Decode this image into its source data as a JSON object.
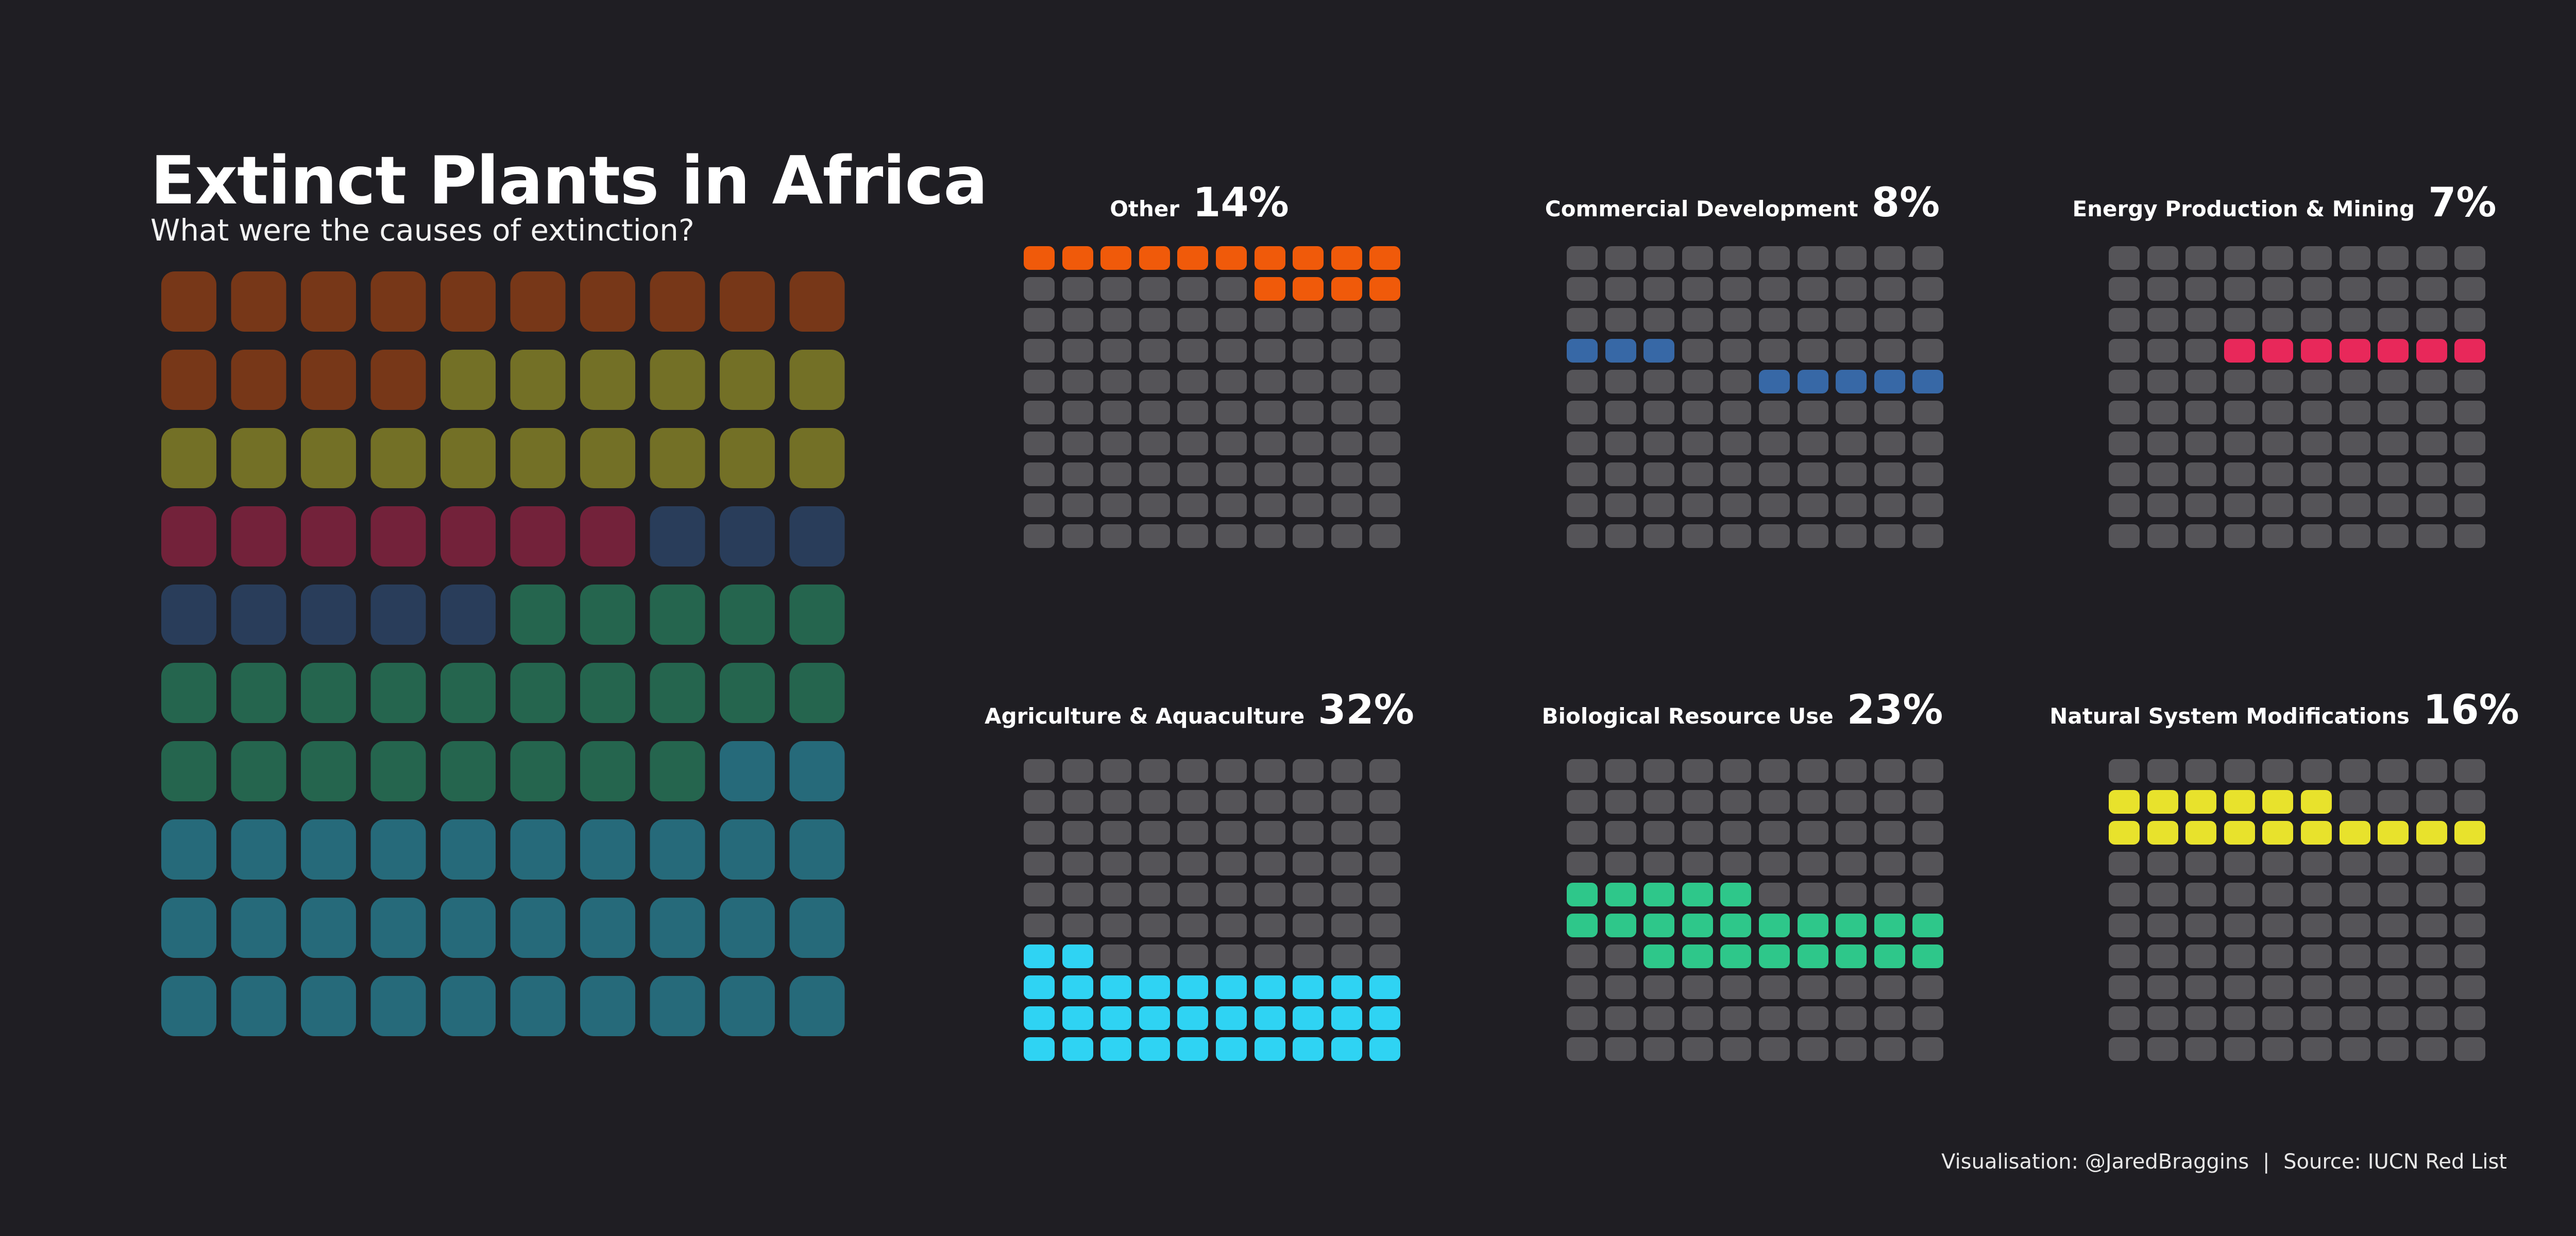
{
  "title": "Extinct Plants in Africa",
  "subtitle": "What were the causes of extinction?",
  "footer": {
    "credit": "Visualisation: @JaredBraggins",
    "separator": "|",
    "source": "Source: IUCN Red List"
  },
  "colors": {
    "background": "#1f1e23",
    "empty_cell": "#555458",
    "Other": "#f05a0a",
    "Commercial Development": "#3768a6",
    "Energy Production & Mining": "#e8285a",
    "Agriculture & Aquaculture": "#2fd3f3",
    "Biological Resource Use": "#2ec78a",
    "Natural System Modifications": "#e8e22c"
  },
  "chart_data": {
    "type": "waffle",
    "grid": [
      10,
      10
    ],
    "unit": "%",
    "categories": [
      {
        "name": "Other",
        "value": 14
      },
      {
        "name": "Commercial Development",
        "value": 8
      },
      {
        "name": "Energy Production & Mining",
        "value": 7
      },
      {
        "name": "Agriculture & Aquaculture",
        "value": 32
      },
      {
        "name": "Biological Resource Use",
        "value": 23
      },
      {
        "name": "Natural System Modifications",
        "value": 16
      }
    ],
    "overview_order": [
      "Other",
      "Natural System Modifications",
      "Energy Production & Mining",
      "Commercial Development",
      "Biological Resource Use",
      "Agriculture & Aquaculture"
    ],
    "panels": [
      {
        "label": "Other",
        "pct": "14%",
        "filled": [
          [
            0,
            0
          ],
          [
            0,
            1
          ],
          [
            0,
            2
          ],
          [
            0,
            3
          ],
          [
            0,
            4
          ],
          [
            0,
            5
          ],
          [
            0,
            6
          ],
          [
            0,
            7
          ],
          [
            0,
            8
          ],
          [
            0,
            9
          ],
          [
            1,
            6
          ],
          [
            1,
            7
          ],
          [
            1,
            8
          ],
          [
            1,
            9
          ]
        ]
      },
      {
        "label": "Commercial Development",
        "pct": "8%",
        "filled": [
          [
            3,
            0
          ],
          [
            3,
            1
          ],
          [
            3,
            2
          ],
          [
            4,
            5
          ],
          [
            4,
            6
          ],
          [
            4,
            7
          ],
          [
            4,
            8
          ],
          [
            4,
            9
          ]
        ]
      },
      {
        "label": "Energy Production & Mining",
        "pct": "7%",
        "filled": [
          [
            3,
            3
          ],
          [
            3,
            4
          ],
          [
            3,
            5
          ],
          [
            3,
            6
          ],
          [
            3,
            7
          ],
          [
            3,
            8
          ],
          [
            3,
            9
          ]
        ]
      },
      {
        "label": "Agriculture & Aquaculture",
        "pct": "32%",
        "filled": [
          [
            6,
            0
          ],
          [
            6,
            1
          ],
          [
            7,
            0
          ],
          [
            7,
            1
          ],
          [
            7,
            2
          ],
          [
            7,
            3
          ],
          [
            7,
            4
          ],
          [
            7,
            5
          ],
          [
            7,
            6
          ],
          [
            7,
            7
          ],
          [
            7,
            8
          ],
          [
            7,
            9
          ],
          [
            8,
            0
          ],
          [
            8,
            1
          ],
          [
            8,
            2
          ],
          [
            8,
            3
          ],
          [
            8,
            4
          ],
          [
            8,
            5
          ],
          [
            8,
            6
          ],
          [
            8,
            7
          ],
          [
            8,
            8
          ],
          [
            8,
            9
          ],
          [
            9,
            0
          ],
          [
            9,
            1
          ],
          [
            9,
            2
          ],
          [
            9,
            3
          ],
          [
            9,
            4
          ],
          [
            9,
            5
          ],
          [
            9,
            6
          ],
          [
            9,
            7
          ],
          [
            9,
            8
          ],
          [
            9,
            9
          ]
        ]
      },
      {
        "label": "Biological Resource Use",
        "pct": "23%",
        "filled": [
          [
            4,
            0
          ],
          [
            4,
            1
          ],
          [
            4,
            2
          ],
          [
            4,
            3
          ],
          [
            4,
            4
          ],
          [
            5,
            0
          ],
          [
            5,
            1
          ],
          [
            5,
            2
          ],
          [
            5,
            3
          ],
          [
            5,
            4
          ],
          [
            5,
            5
          ],
          [
            5,
            6
          ],
          [
            5,
            7
          ],
          [
            5,
            8
          ],
          [
            5,
            9
          ],
          [
            6,
            2
          ],
          [
            6,
            3
          ],
          [
            6,
            4
          ],
          [
            6,
            5
          ],
          [
            6,
            6
          ],
          [
            6,
            7
          ],
          [
            6,
            8
          ],
          [
            6,
            9
          ]
        ]
      },
      {
        "label": "Natural System Modifications",
        "pct": "16%",
        "filled": [
          [
            1,
            0
          ],
          [
            1,
            1
          ],
          [
            1,
            2
          ],
          [
            1,
            3
          ],
          [
            1,
            4
          ],
          [
            1,
            5
          ],
          [
            2,
            0
          ],
          [
            2,
            1
          ],
          [
            2,
            2
          ],
          [
            2,
            3
          ],
          [
            2,
            4
          ],
          [
            2,
            5
          ],
          [
            2,
            6
          ],
          [
            2,
            7
          ],
          [
            2,
            8
          ],
          [
            2,
            9
          ]
        ]
      }
    ]
  }
}
